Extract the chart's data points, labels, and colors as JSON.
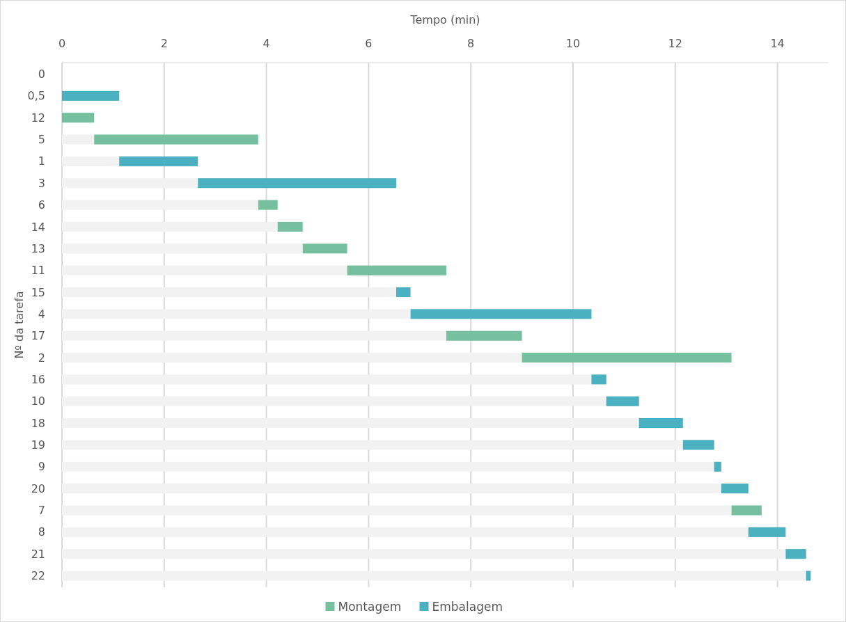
{
  "chart_data": {
    "type": "bar",
    "orientation": "horizontal",
    "stacked": true,
    "xlabel": "Tempo (min)",
    "ylabel": "Nº da tarefa",
    "categories": [
      "0",
      "0,5",
      "12",
      "5",
      "1",
      "3",
      "6",
      "14",
      "13",
      "11",
      "15",
      "4",
      "17",
      "2",
      "16",
      "10",
      "18",
      "19",
      "9",
      "20",
      "7",
      "8",
      "21",
      "22"
    ],
    "series": [
      {
        "color": "#f2f2f2",
        "values": [
          null,
          null,
          null,
          0.63,
          1.12,
          2.66,
          3.84,
          4.22,
          4.71,
          5.58,
          6.54,
          6.82,
          7.52,
          9.0,
          10.36,
          10.65,
          11.29,
          12.15,
          12.76,
          12.9,
          13.1,
          13.43,
          14.16,
          14.56
        ]
      },
      {
        "name": "Montagem",
        "color": "#76c0a0",
        "values": [
          null,
          null,
          0.63,
          3.21,
          null,
          null,
          0.38,
          0.49,
          0.87,
          1.94,
          null,
          null,
          1.48,
          4.1,
          null,
          null,
          null,
          null,
          null,
          null,
          0.59,
          null,
          null,
          null
        ]
      },
      {
        "name": "Embalagem",
        "color": "#4bb0c0",
        "values": [
          null,
          1.12,
          null,
          null,
          1.54,
          3.88,
          null,
          null,
          null,
          null,
          0.28,
          3.54,
          null,
          null,
          0.29,
          0.64,
          0.86,
          0.61,
          0.14,
          0.53,
          null,
          0.73,
          0.4,
          0.09
        ]
      }
    ],
    "xlim": [
      0,
      15
    ],
    "xticks": [
      0,
      2,
      4,
      6,
      8,
      10,
      12,
      14
    ],
    "grid": "x",
    "legend": "bottom"
  }
}
